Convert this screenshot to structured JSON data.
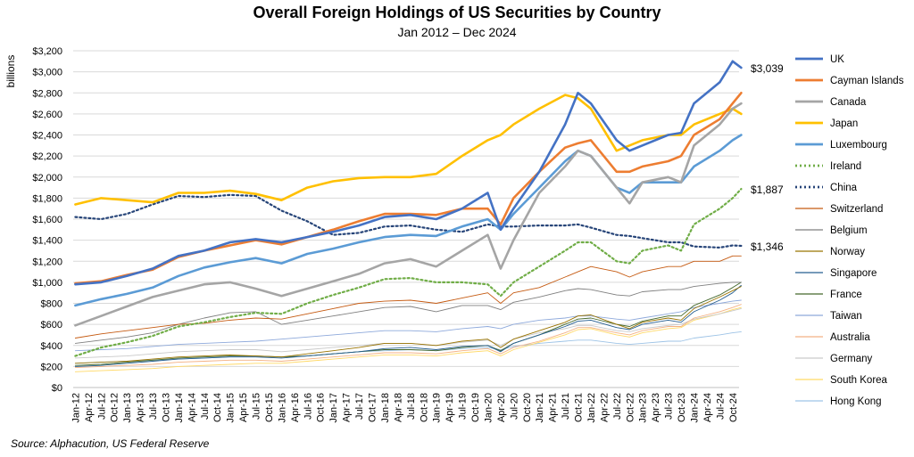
{
  "chart_data": {
    "type": "line",
    "title": "Overall Foreign Holdings of US Securities by Country",
    "subtitle": "Jan 2012 – Dec 2024",
    "ylabel": "billions",
    "xlabel": "",
    "ylim": [
      0,
      3200
    ],
    "ytick_step": 200,
    "ytick_labels": [
      "$0",
      "$200",
      "$400",
      "$600",
      "$800",
      "$1,000",
      "$1,200",
      "$1,400",
      "$1,600",
      "$1,800",
      "$2,000",
      "$2,200",
      "$2,400",
      "$2,600",
      "$2,800",
      "$3,000",
      "$3,200"
    ],
    "grid": true,
    "legend_position": "right",
    "x_tick_labels": [
      "Jan-12",
      "Apr-12",
      "Jul-12",
      "Oct-12",
      "Jan-13",
      "Apr-13",
      "Jul-13",
      "Oct-13",
      "Jan-14",
      "Apr-14",
      "Jul-14",
      "Oct-14",
      "Jan-15",
      "Apr-15",
      "Jul-15",
      "Oct-15",
      "Jan-16",
      "Apr-16",
      "Jul-16",
      "Oct-16",
      "Jan-17",
      "Apr-17",
      "Jul-17",
      "Oct-17",
      "Jan-18",
      "Apr-18",
      "Jul-18",
      "Oct-18",
      "Jan-19",
      "Apr-19",
      "Jul-19",
      "Oct-19",
      "Jan-20",
      "Apr-20",
      "Jul-20",
      "Oct-20",
      "Jan-21",
      "Apr-21",
      "Jul-21",
      "Oct-21",
      "Jan-22",
      "Apr-22",
      "Jul-22",
      "Oct-22",
      "Jan-23",
      "Apr-23",
      "Jul-23",
      "Oct-23",
      "Jan-24",
      "Apr-24",
      "Jul-24",
      "Oct-24"
    ],
    "x_keys": [
      "Jan-12",
      "Jul-12",
      "Jan-13",
      "Jul-13",
      "Jan-14",
      "Jul-14",
      "Jan-15",
      "Jul-15",
      "Jan-16",
      "Jul-16",
      "Jan-17",
      "Jul-17",
      "Jan-18",
      "Jul-18",
      "Jan-19",
      "Jul-19",
      "Jan-20",
      "Apr-20",
      "Jul-20",
      "Jan-21",
      "Jul-21",
      "Oct-21",
      "Jan-22",
      "Jul-22",
      "Oct-22",
      "Jan-23",
      "Jul-23",
      "Oct-23",
      "Jan-24",
      "Jul-24",
      "Oct-24",
      "Dec-24"
    ],
    "series": [
      {
        "name": "UK",
        "color": "#4472C4",
        "width": 2.6,
        "dash": "",
        "values": [
          980,
          1000,
          1060,
          1130,
          1250,
          1300,
          1380,
          1410,
          1380,
          1430,
          1480,
          1540,
          1620,
          1640,
          1600,
          1700,
          1850,
          1500,
          1700,
          2050,
          2500,
          2800,
          2700,
          2350,
          2250,
          2300,
          2400,
          2420,
          2700,
          2900,
          3100,
          3039
        ]
      },
      {
        "name": "Cayman Islands",
        "color": "#ED7D31",
        "width": 2.6,
        "dash": "",
        "values": [
          990,
          1010,
          1070,
          1120,
          1240,
          1300,
          1350,
          1400,
          1360,
          1430,
          1500,
          1580,
          1650,
          1650,
          1640,
          1700,
          1700,
          1550,
          1800,
          2050,
          2280,
          2320,
          2350,
          2050,
          2050,
          2100,
          2150,
          2200,
          2400,
          2550,
          2700,
          2800
        ]
      },
      {
        "name": "Canada",
        "color": "#A5A5A5",
        "width": 2.6,
        "dash": "",
        "values": [
          590,
          680,
          770,
          860,
          920,
          980,
          1000,
          940,
          870,
          940,
          1010,
          1080,
          1180,
          1220,
          1150,
          1300,
          1450,
          1130,
          1400,
          1850,
          2100,
          2250,
          2200,
          1900,
          1750,
          1950,
          2000,
          1950,
          2300,
          2500,
          2650,
          2700
        ]
      },
      {
        "name": "Japan",
        "color": "#FFC000",
        "width": 2.6,
        "dash": "",
        "values": [
          1740,
          1800,
          1780,
          1760,
          1850,
          1850,
          1870,
          1840,
          1780,
          1900,
          1960,
          1990,
          2000,
          2000,
          2030,
          2200,
          2350,
          2400,
          2500,
          2650,
          2780,
          2750,
          2650,
          2250,
          2300,
          2350,
          2400,
          2400,
          2500,
          2600,
          2650,
          2600
        ]
      },
      {
        "name": "Luxembourg",
        "color": "#5B9BD5",
        "width": 2.6,
        "dash": "",
        "values": [
          780,
          840,
          890,
          950,
          1060,
          1140,
          1190,
          1230,
          1180,
          1270,
          1320,
          1380,
          1430,
          1450,
          1440,
          1530,
          1600,
          1500,
          1650,
          1900,
          2150,
          2250,
          2200,
          1900,
          1850,
          1950,
          1950,
          1950,
          2100,
          2250,
          2350,
          2400
        ]
      },
      {
        "name": "Ireland",
        "color": "#70AD47",
        "width": 2.2,
        "dash": "2,3",
        "values": [
          300,
          380,
          430,
          490,
          580,
          620,
          670,
          710,
          700,
          800,
          880,
          950,
          1030,
          1040,
          1000,
          1000,
          980,
          870,
          1000,
          1150,
          1300,
          1380,
          1380,
          1200,
          1180,
          1300,
          1350,
          1300,
          1550,
          1700,
          1800,
          1887
        ]
      },
      {
        "name": "China",
        "color": "#264478",
        "width": 2.2,
        "dash": "2,3",
        "values": [
          1620,
          1600,
          1650,
          1740,
          1820,
          1810,
          1830,
          1820,
          1680,
          1580,
          1450,
          1470,
          1530,
          1540,
          1500,
          1480,
          1550,
          1530,
          1530,
          1540,
          1540,
          1550,
          1520,
          1450,
          1440,
          1420,
          1380,
          1380,
          1340,
          1330,
          1350,
          1346
        ]
      },
      {
        "name": "Switzerland",
        "color": "#C55A11",
        "width": 0.9,
        "dash": "",
        "values": [
          470,
          510,
          540,
          570,
          600,
          610,
          640,
          660,
          650,
          700,
          750,
          800,
          820,
          830,
          800,
          850,
          900,
          800,
          900,
          950,
          1050,
          1100,
          1150,
          1100,
          1050,
          1100,
          1150,
          1150,
          1200,
          1200,
          1250,
          1250
        ]
      },
      {
        "name": "Belgium",
        "color": "#7F7F7F",
        "width": 0.9,
        "dash": "",
        "values": [
          420,
          450,
          480,
          520,
          600,
          660,
          710,
          720,
          600,
          640,
          680,
          720,
          760,
          770,
          720,
          780,
          780,
          740,
          810,
          860,
          920,
          940,
          930,
          880,
          870,
          910,
          930,
          930,
          960,
          990,
          1000,
          1000
        ]
      },
      {
        "name": "Norway",
        "color": "#997300",
        "width": 0.9,
        "dash": "",
        "values": [
          230,
          240,
          250,
          270,
          290,
          300,
          310,
          300,
          290,
          320,
          350,
          380,
          420,
          420,
          400,
          440,
          460,
          380,
          460,
          540,
          620,
          680,
          690,
          600,
          560,
          620,
          660,
          640,
          750,
          860,
          920,
          960
        ]
      },
      {
        "name": "Singapore",
        "color": "#255E91",
        "width": 0.9,
        "dash": "",
        "values": [
          200,
          210,
          230,
          250,
          270,
          280,
          290,
          290,
          280,
          300,
          320,
          340,
          370,
          380,
          360,
          390,
          400,
          340,
          420,
          500,
          580,
          630,
          640,
          570,
          550,
          600,
          640,
          620,
          720,
          830,
          900,
          970
        ]
      },
      {
        "name": "France",
        "color": "#43682B",
        "width": 0.9,
        "dash": "",
        "values": [
          210,
          220,
          240,
          260,
          280,
          290,
          300,
          300,
          290,
          300,
          320,
          340,
          360,
          360,
          350,
          380,
          400,
          350,
          420,
          500,
          600,
          650,
          660,
          600,
          580,
          630,
          680,
          680,
          780,
          880,
          950,
          1000
        ]
      },
      {
        "name": "Taiwan",
        "color": "#8EA9DB",
        "width": 0.9,
        "dash": "",
        "values": [
          350,
          360,
          370,
          390,
          410,
          420,
          430,
          440,
          460,
          480,
          500,
          520,
          540,
          540,
          530,
          560,
          580,
          560,
          600,
          640,
          660,
          680,
          680,
          650,
          640,
          660,
          700,
          720,
          760,
          800,
          820,
          830
        ]
      },
      {
        "name": "Australia",
        "color": "#F4B183",
        "width": 0.9,
        "dash": "",
        "values": [
          190,
          200,
          210,
          220,
          240,
          250,
          260,
          260,
          250,
          270,
          290,
          310,
          330,
          330,
          320,
          350,
          370,
          320,
          380,
          440,
          520,
          570,
          570,
          520,
          500,
          540,
          580,
          580,
          660,
          720,
          760,
          790
        ]
      },
      {
        "name": "Germany",
        "color": "#C9C9C9",
        "width": 0.9,
        "dash": "",
        "values": [
          280,
          290,
          300,
          320,
          340,
          350,
          360,
          360,
          340,
          360,
          380,
          400,
          420,
          420,
          400,
          430,
          450,
          400,
          460,
          520,
          560,
          590,
          590,
          540,
          530,
          560,
          590,
          600,
          650,
          700,
          730,
          750
        ]
      },
      {
        "name": "South Korea",
        "color": "#FFD966",
        "width": 0.9,
        "dash": "",
        "values": [
          150,
          160,
          170,
          180,
          200,
          210,
          220,
          230,
          230,
          250,
          270,
          290,
          310,
          310,
          300,
          330,
          350,
          300,
          360,
          430,
          500,
          550,
          560,
          500,
          480,
          520,
          560,
          570,
          640,
          700,
          740,
          760
        ]
      },
      {
        "name": "Hong Kong",
        "color": "#9DC3E6",
        "width": 0.9,
        "dash": "",
        "values": [
          230,
          240,
          250,
          260,
          270,
          280,
          290,
          290,
          290,
          300,
          320,
          340,
          350,
          360,
          350,
          370,
          380,
          360,
          390,
          420,
          440,
          450,
          450,
          420,
          410,
          420,
          440,
          440,
          470,
          500,
          520,
          530
        ]
      }
    ],
    "annotations": [
      {
        "text": "$3,039",
        "series": "UK"
      },
      {
        "text": "$1,887",
        "series": "Ireland"
      },
      {
        "text": "$1,346",
        "series": "China"
      }
    ]
  },
  "source": "Source: Alphacution, US Federal Reserve"
}
